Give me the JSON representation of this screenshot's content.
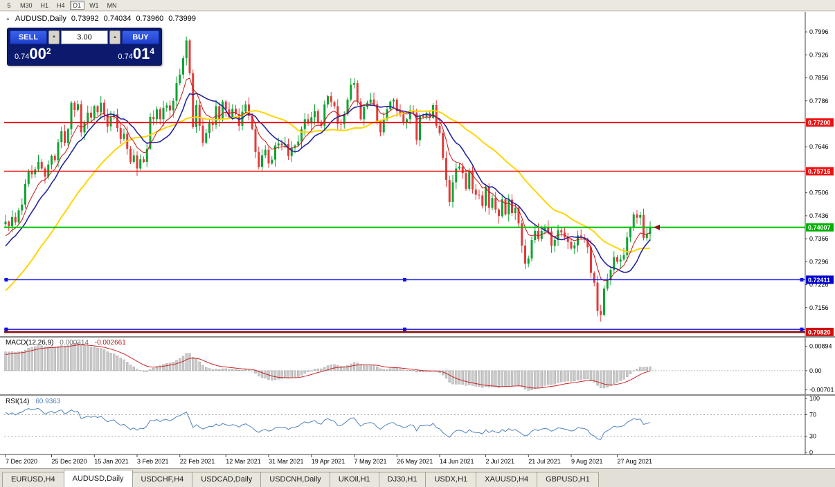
{
  "window": {
    "background": "#ebe8e0"
  },
  "toolbar": {
    "timeframes": [
      "5",
      "M30",
      "H1",
      "H4",
      "D1",
      "W1",
      "MN"
    ],
    "active": "D1"
  },
  "icons": {
    "collapse_icon": "▲",
    "volume_down_icon": "▼",
    "volume_up_icon": "▲"
  },
  "chart_header": {
    "symbol": "AUDUSD,Daily",
    "open": "0.73992",
    "high": "0.74034",
    "low": "0.73960",
    "close": "0.73999"
  },
  "one_click": {
    "sell_label": "SELL",
    "buy_label": "BUY",
    "volume": "3.00",
    "sell_price": {
      "small": "0.74",
      "big": "00",
      "sup": "2"
    },
    "buy_price": {
      "small": "0.74",
      "big": "01",
      "sup": "4"
    }
  },
  "tabs": {
    "items": [
      "EURUSD,H4",
      "AUDUSD,Daily",
      "USDCHF,H4",
      "USDCAD,Daily",
      "USDCNH,Daily",
      "UKOil,H1",
      "DJ30,H1",
      "USDX,H1",
      "XAUUSD,H4",
      "GBPUSD,H1"
    ],
    "active_index": 1
  },
  "chart_data": {
    "type": "candlestick",
    "symbol": "AUDUSD",
    "timeframe": "Daily",
    "colors": {
      "up": "#0fa432",
      "down": "#e23b3b",
      "macd_hist": "#c9c9c9",
      "macd_hist_border": "#9b9b9b",
      "macd_signal": "#cc2222",
      "rsi_line": "#4f81bd"
    },
    "price_axis": {
      "min": 0.7067,
      "max": 0.8051,
      "ticks": [
        0.7996,
        0.7926,
        0.7856,
        0.7786,
        0.7646,
        0.7506,
        0.7436,
        0.7366,
        0.7296,
        0.7226,
        0.7156
      ]
    },
    "x_labels": [
      {
        "label": "7 Dec 2020",
        "i": 0
      },
      {
        "label": "25 Dec 2020",
        "i": 14
      },
      {
        "label": "15 Jan 2021",
        "i": 27
      },
      {
        "label": "3 Feb 2021",
        "i": 40
      },
      {
        "label": "22 Feb 2021",
        "i": 53
      },
      {
        "label": "12 Mar 2021",
        "i": 67
      },
      {
        "label": "31 Mar 2021",
        "i": 80
      },
      {
        "label": "19 Apr 2021",
        "i": 93
      },
      {
        "label": "7 May 2021",
        "i": 106
      },
      {
        "label": "26 May 2021",
        "i": 119
      },
      {
        "label": "14 Jun 2021",
        "i": 132
      },
      {
        "label": "2 Jul 2021",
        "i": 146
      },
      {
        "label": "21 Jul 2021",
        "i": 159
      },
      {
        "label": "9 Aug 2021",
        "i": 172
      },
      {
        "label": "27 Aug 2021",
        "i": 186
      }
    ],
    "warmup_closes": [
      0.716,
      0.713,
      0.7105,
      0.708,
      0.706,
      0.7075,
      0.71,
      0.709,
      0.7065,
      0.7045,
      0.706,
      0.708,
      0.711,
      0.713,
      0.7105,
      0.7085,
      0.707,
      0.7095,
      0.712,
      0.7145,
      0.713,
      0.711,
      0.7125,
      0.715,
      0.718,
      0.721,
      0.724,
      0.7265,
      0.725,
      0.728,
      0.731,
      0.729,
      0.732,
      0.7345,
      0.733,
      0.736,
      0.7385,
      0.737,
      0.7395,
      0.741
    ],
    "closes": [
      0.7418,
      0.7404,
      0.7432,
      0.7416,
      0.7452,
      0.747,
      0.7533,
      0.757,
      0.7562,
      0.7577,
      0.76,
      0.758,
      0.7555,
      0.7592,
      0.7619,
      0.7605,
      0.766,
      0.7694,
      0.7657,
      0.77,
      0.778,
      0.7758,
      0.7776,
      0.769,
      0.772,
      0.775,
      0.7735,
      0.777,
      0.7751,
      0.778,
      0.7745,
      0.7708,
      0.7736,
      0.7745,
      0.7703,
      0.767,
      0.7686,
      0.764,
      0.76,
      0.762,
      0.758,
      0.7608,
      0.76,
      0.764,
      0.7737,
      0.773,
      0.776,
      0.773,
      0.7765,
      0.7772,
      0.7757,
      0.7786,
      0.784,
      0.7866,
      0.7916,
      0.797,
      0.787,
      0.7706,
      0.7773,
      0.771,
      0.7658,
      0.7688,
      0.772,
      0.7712,
      0.777,
      0.773,
      0.7784,
      0.776,
      0.7736,
      0.7762,
      0.7746,
      0.771,
      0.7753,
      0.7775,
      0.774,
      0.77,
      0.763,
      0.7585,
      0.762,
      0.7637,
      0.7595,
      0.7607,
      0.765,
      0.7656,
      0.765,
      0.7655,
      0.7618,
      0.7644,
      0.765,
      0.7662,
      0.77,
      0.773,
      0.7717,
      0.7736,
      0.7755,
      0.772,
      0.771,
      0.7775,
      0.78,
      0.7782,
      0.777,
      0.7716,
      0.7715,
      0.7745,
      0.779,
      0.7835,
      0.784,
      0.7784,
      0.773,
      0.7767,
      0.778,
      0.779,
      0.7776,
      0.7725,
      0.769,
      0.773,
      0.776,
      0.7784,
      0.779,
      0.7755,
      0.7745,
      0.7722,
      0.773,
      0.7757,
      0.775,
      0.7666,
      0.774,
      0.7736,
      0.7749,
      0.7734,
      0.7773,
      0.771,
      0.7688,
      0.7612,
      0.7545,
      0.7478,
      0.7538,
      0.758,
      0.7586,
      0.7566,
      0.7518,
      0.757,
      0.7516,
      0.75,
      0.7498,
      0.7466,
      0.7525,
      0.746,
      0.749,
      0.7455,
      0.7435,
      0.7486,
      0.744,
      0.7485,
      0.7444,
      0.746,
      0.7413,
      0.7345,
      0.729,
      0.7306,
      0.7362,
      0.739,
      0.7365,
      0.739,
      0.74,
      0.7388,
      0.7344,
      0.7362,
      0.7392,
      0.7385,
      0.737,
      0.7356,
      0.7336,
      0.7346,
      0.7376,
      0.737,
      0.7364,
      0.734,
      0.7262,
      0.7232,
      0.7146,
      0.7134,
      0.7214,
      0.724,
      0.7271,
      0.731,
      0.7296,
      0.7303,
      0.7316,
      0.737,
      0.74,
      0.744,
      0.743,
      0.7438,
      0.7368,
      0.738,
      0.74
    ],
    "moving_averages": [
      {
        "name": "slow",
        "type": "sma",
        "period": 34,
        "color": "#ffd400",
        "width": 2
      },
      {
        "name": "medium",
        "type": "sma",
        "period": 13,
        "color": "#24249c",
        "width": 1.6
      },
      {
        "name": "fast",
        "type": "ema",
        "period": 8,
        "color": "#c81616",
        "width": 1
      }
    ],
    "levels": [
      {
        "price": 0.772,
        "badge": "0.77200",
        "color": "#ee1111",
        "width": 2
      },
      {
        "price": 0.75716,
        "badge": "0.75716",
        "color": "#ee1111",
        "width": 1.5
      },
      {
        "price": 0.74007,
        "badge": "0.74007",
        "color": "#00c000",
        "badge_color": "#00b000",
        "width": 2
      },
      {
        "price": 0.72411,
        "badge": "0.72411",
        "color": "#1111ee",
        "badge_color": "#0000cc",
        "width": 1.5,
        "handles": true
      },
      {
        "price": 0.709,
        "color": "#1111ee",
        "width": 1.5,
        "handles": true
      },
      {
        "price": 0.7082,
        "badge": "0.70820",
        "color": "#8b1a1a",
        "badge_color": "#d01010",
        "width": 3
      }
    ],
    "price_marker": {
      "price": 0.74007,
      "color": "#8b1010"
    },
    "indicators": {
      "macd": {
        "label": "MACD(12,26,9)",
        "value_main": "0.000314",
        "value_signal": "-0.002661",
        "fast": 12,
        "slow": 26,
        "signal": 9,
        "range": [
          0.0119,
          -0.0089
        ],
        "ticks": [
          {
            "v": 0.00894,
            "label": "0.00894"
          },
          {
            "v": 0,
            "label": "0.00"
          },
          {
            "v": -0.00701,
            "label": "-0.00701"
          }
        ]
      },
      "rsi": {
        "label": "RSI(14)",
        "value": "60.9363",
        "period": 14,
        "levels": [
          30,
          70
        ],
        "range": [
          104,
          -4
        ],
        "ticks": [
          {
            "v": 100,
            "label": "100"
          },
          {
            "v": 70,
            "label": "70"
          },
          {
            "v": 30,
            "label": "30"
          },
          {
            "v": 0,
            "label": "0"
          }
        ]
      }
    }
  }
}
